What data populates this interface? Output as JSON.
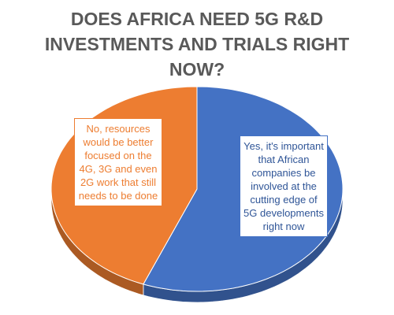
{
  "chart_data": {
    "type": "pie",
    "title": "DOES AFRICA NEED 5G R&D INVESTMENTS AND TRIALS RIGHT NOW?",
    "categories": [
      "Yes, it's important that African companies be involved at the cutting edge of 5G developments right now",
      "No, resources would be better focused on the 4G, 3G and even 2G work that still needs to be done"
    ],
    "values": [
      56,
      44
    ],
    "colors": [
      "#4472c4",
      "#ed7d31"
    ]
  }
}
